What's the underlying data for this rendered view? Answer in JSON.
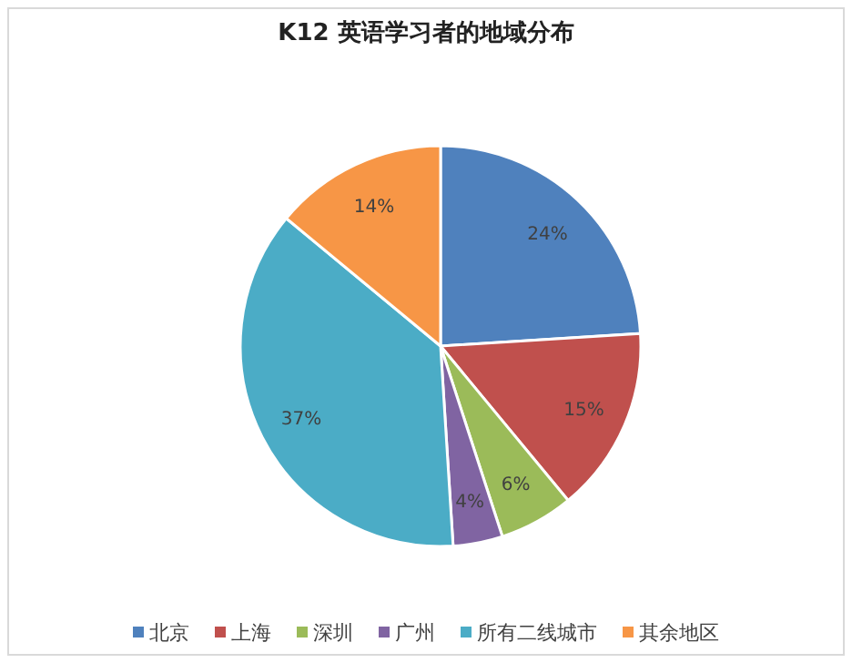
{
  "chart_data": {
    "type": "pie",
    "title": "K12 英语学习者的地域分布",
    "categories": [
      "北京",
      "上海",
      "深圳",
      "广州",
      "所有二线城市",
      "其余地区"
    ],
    "values": [
      24,
      15,
      6,
      4,
      37,
      14
    ],
    "colors": [
      "#4f81bd",
      "#c0504d",
      "#9bbb59",
      "#8064a2",
      "#4bacc6",
      "#f79646"
    ],
    "value_labels": [
      "24%",
      "15%",
      "6%",
      "4%",
      "37%",
      "14%"
    ],
    "legend": "bottom"
  }
}
